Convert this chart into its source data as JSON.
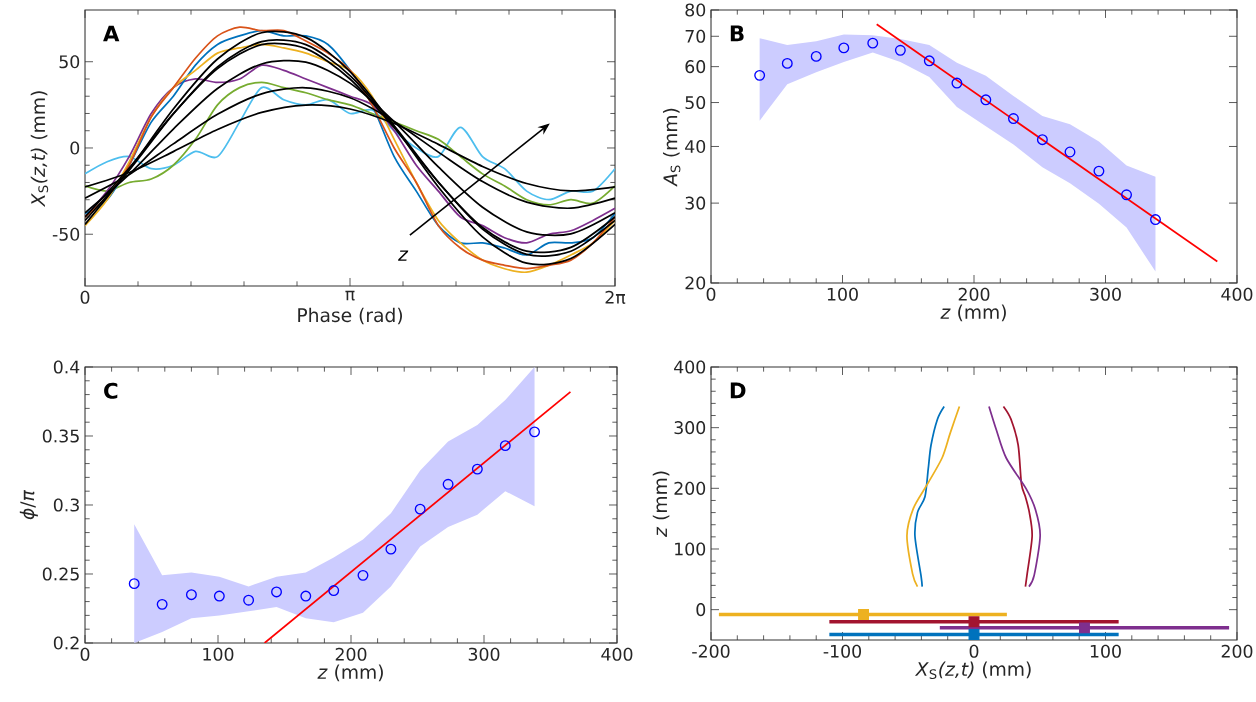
{
  "chart_data": [
    {
      "type": "line",
      "title": "A",
      "xlabel": "Phase (rad)",
      "ylabel": "*X*$_{S}$*(z,t)* (mm)",
      "xlim": [
        0,
        6.2832
      ],
      "ylim": [
        -80,
        80
      ],
      "xticks": [
        {
          "value": 0,
          "label": "0"
        },
        {
          "value": 3.1416,
          "label": "π"
        },
        {
          "value": 6.2832,
          "label": "2π"
        }
      ],
      "yticks": [
        -50,
        0,
        50
      ],
      "annotations": [
        "z"
      ],
      "x": [
        0,
        0.2618,
        0.5236,
        0.7854,
        1.0472,
        1.309,
        1.5708,
        1.8326,
        2.0944,
        2.3562,
        2.618,
        2.8798,
        3.1416,
        3.4034,
        3.6652,
        3.927,
        4.1888,
        4.4506,
        4.7124,
        4.9742,
        5.236,
        5.4978,
        5.7596,
        6.0214,
        6.2832
      ],
      "series": [
        {
          "color": "#4dbeee",
          "values": [
            -15,
            -8,
            -5,
            -12,
            -10,
            -2,
            -5,
            15,
            35,
            28,
            25,
            28,
            20,
            22,
            10,
            0,
            -5,
            12,
            -5,
            -12,
            -25,
            -30,
            -25,
            -25,
            -12
          ]
        },
        {
          "color": "#77ac30",
          "values": [
            -22,
            -25,
            -20,
            -18,
            -10,
            5,
            25,
            35,
            38,
            35,
            32,
            28,
            25,
            20,
            15,
            10,
            5,
            -5,
            -15,
            -22,
            -30,
            -33,
            -30,
            -32,
            -22
          ]
        },
        {
          "color": "#7e2f8e",
          "values": [
            -40,
            -25,
            -5,
            20,
            35,
            40,
            38,
            40,
            48,
            45,
            40,
            35,
            30,
            25,
            10,
            -10,
            -25,
            -40,
            -45,
            -52,
            -55,
            -50,
            -48,
            -42,
            -35
          ]
        },
        {
          "color": "#0072bd",
          "values": [
            -38,
            -30,
            -10,
            15,
            30,
            48,
            60,
            65,
            68,
            65,
            65,
            60,
            45,
            25,
            -5,
            -25,
            -45,
            -55,
            -55,
            -58,
            -62,
            -55,
            -55,
            -52,
            -38
          ]
        },
        {
          "color": "#edb120",
          "values": [
            -45,
            -30,
            -8,
            18,
            35,
            45,
            55,
            58,
            60,
            58,
            55,
            50,
            45,
            30,
            5,
            -20,
            -42,
            -55,
            -65,
            -70,
            -72,
            -68,
            -62,
            -55,
            -42
          ]
        },
        {
          "color": "#d95319",
          "values": [
            -40,
            -28,
            -10,
            18,
            35,
            52,
            65,
            70,
            68,
            68,
            62,
            55,
            45,
            25,
            0,
            -20,
            -45,
            -58,
            -65,
            -68,
            -70,
            -68,
            -65,
            -55,
            -40
          ]
        },
        {
          "color": "#000000",
          "x": [
            0,
            0.5236,
            1.0472,
            1.5708,
            2.0944,
            2.618,
            3.1416,
            3.6652,
            4.1888,
            4.7124,
            5.236,
            5.7596,
            6.2832
          ],
          "values": [
            -44.3,
            -12.5,
            22.6,
            51.6,
            66.8,
            64.1,
            44.3,
            12.6,
            -22.6,
            -51.5,
            -66.8,
            -64.1,
            -44.3
          ]
        },
        {
          "color": "#000000",
          "x": [
            0,
            0.5236,
            1.0472,
            1.5708,
            2.0944,
            2.618,
            3.1416,
            3.6652,
            4.1888,
            4.7124,
            5.236,
            5.7596,
            6.2832
          ],
          "values": [
            -42.0,
            -12.9,
            19.7,
            47.0,
            61.7,
            59.9,
            42.0,
            12.9,
            -19.7,
            -47.0,
            -61.7,
            -59.9,
            -42.0
          ]
        },
        {
          "color": "#000000",
          "x": [
            0,
            0.5236,
            1.0472,
            1.5708,
            2.0944,
            2.618,
            3.1416,
            3.6652,
            4.1888,
            4.7124,
            5.236,
            5.7596,
            6.2832
          ],
          "values": [
            -40.0,
            -11.6,
            19.9,
            46.1,
            59.9,
            57.6,
            40.0,
            11.7,
            -19.9,
            -46.1,
            -59.8,
            -57.6,
            -40.0
          ]
        },
        {
          "color": "#000000",
          "x": [
            0,
            0.5236,
            1.0472,
            1.5708,
            2.0944,
            2.618,
            3.1416,
            3.6652,
            4.1888,
            4.7124,
            5.236,
            5.7596,
            6.2832
          ],
          "values": [
            -37.6,
            -15.3,
            11.0,
            34.5,
            48.7,
            49.8,
            37.6,
            15.3,
            -11.0,
            -34.4,
            -48.6,
            -49.8,
            -37.6
          ]
        },
        {
          "color": "#000000",
          "x": [
            0,
            0.5236,
            1.0472,
            1.5708,
            2.0944,
            2.618,
            3.1416,
            3.6652,
            4.1888,
            4.7124,
            5.236,
            5.7596,
            6.2832
          ],
          "values": [
            -29.1,
            -15.4,
            2.4,
            19.5,
            31.4,
            34.9,
            29.1,
            15.4,
            -2.4,
            -19.5,
            -31.4,
            -34.9,
            -29.1
          ]
        },
        {
          "color": "#000000",
          "x": [
            0,
            0.5236,
            1.0472,
            1.5708,
            2.0944,
            2.618,
            3.1416,
            3.6652,
            4.1888,
            4.7124,
            5.236,
            5.7596,
            6.2832
          ],
          "values": [
            -22.6,
            -14.2,
            -2.1,
            10.7,
            20.6,
            24.9,
            22.6,
            14.2,
            2.1,
            -10.7,
            -20.6,
            -24.9,
            -22.6
          ]
        }
      ]
    },
    {
      "type": "scatter",
      "title": "B",
      "xlabel": "*z* (mm)",
      "ylabel": "*A*$_{S}$ (mm)",
      "log": true,
      "xlim": [
        0,
        400
      ],
      "ylim": [
        20,
        80
      ],
      "xticks": [
        0,
        100,
        200,
        300,
        400
      ],
      "yticks": [
        20,
        30,
        40,
        50,
        60,
        70,
        80
      ],
      "x": [
        37,
        58,
        80,
        101,
        123,
        144,
        166,
        187,
        209,
        230,
        252,
        273,
        295,
        316,
        338
      ],
      "series": [
        {
          "color": "#0000ff",
          "marker": "circle",
          "values": [
            57.4,
            61.0,
            63.2,
            66.0,
            67.6,
            65.2,
            61.8,
            55.2,
            50.7,
            46.1,
            41.4,
            38.9,
            35.3,
            31.3,
            27.6
          ],
          "lower": [
            45.6,
            54.9,
            58.3,
            61.4,
            64.5,
            61.4,
            56.9,
            48.9,
            44.3,
            40.4,
            36.0,
            33.2,
            29.9,
            26.5,
            21.2
          ],
          "upper": [
            69.3,
            67.0,
            68.3,
            70.6,
            70.4,
            69.0,
            67.0,
            61.2,
            57.3,
            51.7,
            46.7,
            44.8,
            41.0,
            36.3,
            34.3
          ]
        },
        {
          "type": "line",
          "color": "#ff0000",
          "x": [
            126,
            385
          ],
          "values": [
            74.4,
            22.3
          ]
        }
      ]
    },
    {
      "type": "scatter",
      "title": "C",
      "xlabel": "*z* (mm)",
      "ylabel": "*ϕ*/*π*",
      "xlim": [
        0,
        400
      ],
      "ylim": [
        0.2,
        0.4
      ],
      "xticks": [
        0,
        100,
        200,
        300,
        400
      ],
      "yticks": [
        0.2,
        0.25,
        0.3,
        0.35,
        0.4
      ],
      "x": [
        37,
        58,
        80,
        101,
        123,
        144,
        166,
        187,
        209,
        230,
        252,
        273,
        295,
        316,
        338
      ],
      "series": [
        {
          "color": "#0000ff",
          "marker": "circle",
          "values": [
            0.243,
            0.228,
            0.235,
            0.234,
            0.231,
            0.237,
            0.234,
            0.238,
            0.249,
            0.268,
            0.297,
            0.315,
            0.326,
            0.343,
            0.353
          ],
          "lower": [
            0.2,
            0.208,
            0.218,
            0.22,
            0.223,
            0.226,
            0.218,
            0.215,
            0.222,
            0.241,
            0.27,
            0.284,
            0.293,
            0.31,
            0.299
          ],
          "upper": [
            0.286,
            0.249,
            0.251,
            0.248,
            0.241,
            0.248,
            0.251,
            0.262,
            0.275,
            0.294,
            0.325,
            0.346,
            0.358,
            0.376,
            0.4
          ]
        },
        {
          "type": "line",
          "color": "#ff0000",
          "x": [
            135,
            365
          ],
          "values": [
            0.2,
            0.382
          ]
        }
      ]
    },
    {
      "type": "line",
      "title": "D",
      "xlabel": "*X*$_{S}$*(z,t)* (mm)",
      "ylabel": "*z* (mm)",
      "xlim": [
        -200,
        200
      ],
      "ylim": [
        -50,
        400
      ],
      "xticks": [
        -200,
        -100,
        0,
        100,
        200
      ],
      "yticks": [
        0,
        100,
        200,
        300,
        400
      ],
      "series": [
        {
          "color": "#0072bd",
          "x": [
            -39.4,
            -40.3,
            -44.9,
            -43.0,
            -37.3,
            -34.8,
            -32.7,
            -27.8,
            -22.7
          ],
          "values": [
            38,
            56,
            121,
            160,
            186,
            232,
            271,
            314,
            335
          ]
        },
        {
          "color": "#edb120",
          "x": [
            -43.0,
            -46.7,
            -51.0,
            -46.1,
            -35.7,
            -24.3,
            -18.1,
            -11.1
          ],
          "values": [
            38,
            59,
            122,
            167,
            206,
            250,
            291,
            335
          ]
        },
        {
          "color": "#a2142f",
          "x": [
            39.1,
            40.3,
            44.2,
            42.1,
            39.1,
            36.1,
            33.6,
            28.1,
            22.4
          ],
          "values": [
            38,
            57,
            121,
            160,
            186,
            207,
            271,
            314,
            335
          ]
        },
        {
          "color": "#7e2f8e",
          "x": [
            41.8,
            45.8,
            50.3,
            46.7,
            39.7,
            24.5,
            16.9,
            11.4
          ],
          "values": [
            38,
            57,
            122,
            165,
            199,
            250,
            297,
            335
          ]
        },
        {
          "type": "scatter",
          "marker": "square",
          "color": "#edb120",
          "x": [
            -84
          ],
          "values": [
            -8
          ],
          "xerrors": [
            [
              -194,
              25
            ]
          ]
        },
        {
          "type": "scatter",
          "marker": "square",
          "color": "#a2142f",
          "x": [
            0
          ],
          "values": [
            -20
          ],
          "xerrors": [
            [
              -110,
              110
            ]
          ]
        },
        {
          "type": "scatter",
          "marker": "square",
          "color": "#7e2f8e",
          "x": [
            84
          ],
          "values": [
            -30
          ],
          "xerrors": [
            [
              -26,
              194
            ]
          ]
        },
        {
          "type": "scatter",
          "marker": "square",
          "color": "#0072bd",
          "x": [
            0
          ],
          "values": [
            -41
          ],
          "xerrors": [
            [
              -110,
              110
            ]
          ]
        }
      ]
    }
  ]
}
